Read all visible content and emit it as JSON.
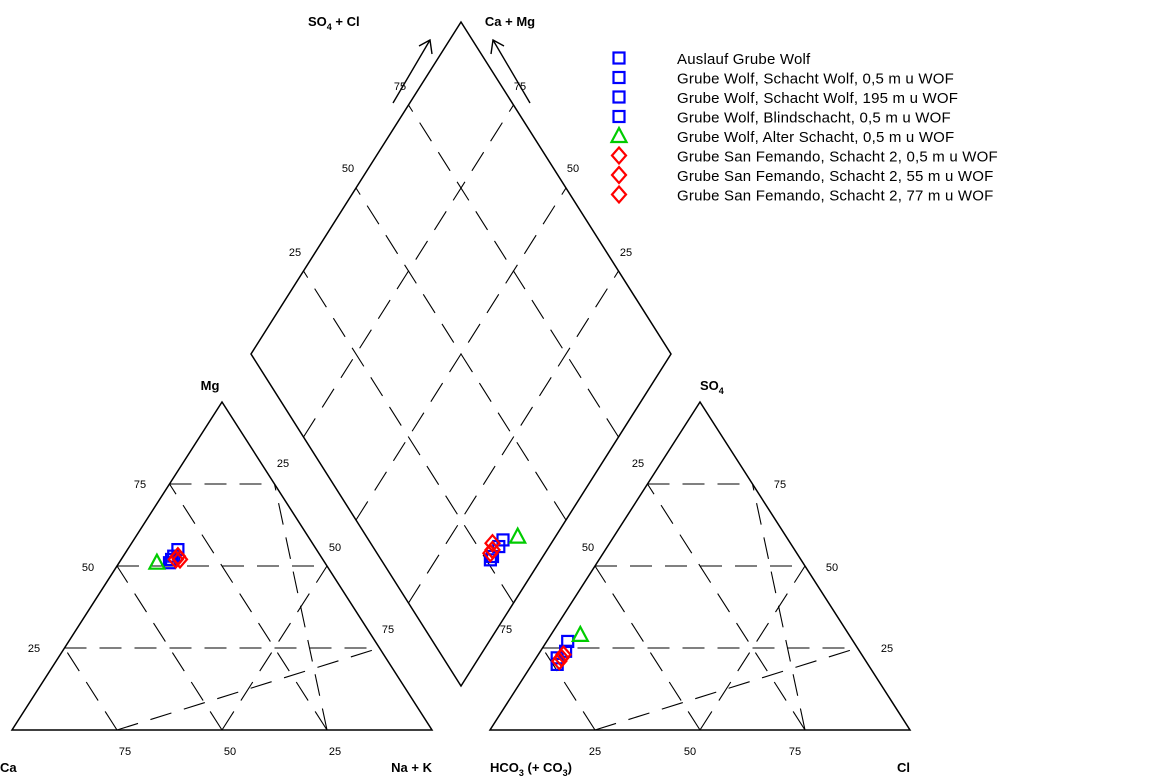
{
  "chart_data": {
    "type": "scatter",
    "subtype": "piper-diagram",
    "corner_labels": {
      "cation": {
        "left": "Ca",
        "top": "Mg",
        "right": "Na + K"
      },
      "anion": {
        "left_main": "HCO",
        "left_sub": "3",
        "left_mid": " (+ CO",
        "left_sub2": "3",
        "left_end": ")",
        "top_main": "SO",
        "top_sub": "4",
        "right": "Cl"
      },
      "diamond": {
        "left_main": "SO",
        "left_sub": "4",
        "left_end": " + Cl",
        "right": "Ca + Mg"
      }
    },
    "ticks": [
      "25",
      "50",
      "75"
    ],
    "series": [
      {
        "name": "Auslauf Grube Wolf",
        "marker": "square",
        "color": "#0000ff",
        "cation": {
          "ca": 33,
          "mg": 55,
          "nak": 12
        },
        "anion": {
          "hco3": 74,
          "so4": 20,
          "cl": 6
        }
      },
      {
        "name": "Grube Wolf, Schacht Wolf, 0,5 m u WOF",
        "marker": "square",
        "color": "#0000ff",
        "cation": {
          "ca": 35,
          "mg": 53,
          "nak": 12
        },
        "anion": {
          "hco3": 73,
          "so4": 22,
          "cl": 5
        }
      },
      {
        "name": "Grube Wolf, Schacht Wolf, 195 m u WOF",
        "marker": "square",
        "color": "#0000ff",
        "cation": {
          "ca": 36,
          "mg": 52,
          "nak": 12
        },
        "anion": {
          "hco3": 68,
          "so4": 27,
          "cl": 5
        }
      },
      {
        "name": "Grube Wolf, Blindschacht, 0,5 m u WOF",
        "marker": "square",
        "color": "#0000ff",
        "cation": {
          "ca": 37,
          "mg": 51,
          "nak": 12
        },
        "anion": {
          "hco3": 70,
          "so4": 24,
          "cl": 6
        }
      },
      {
        "name": "Grube Wolf, Alter Schacht, 0,5 m u WOF",
        "marker": "triangle",
        "color": "#00cc00",
        "cation": {
          "ca": 40,
          "mg": 51,
          "nak": 9
        },
        "anion": {
          "hco3": 64,
          "so4": 29,
          "cl": 7
        }
      },
      {
        "name": "Grube San Femando, Schacht 2, 0,5 m u WOF",
        "marker": "diamond",
        "color": "#ff0000",
        "cation": {
          "ca": 34,
          "mg": 52,
          "nak": 14
        },
        "anion": {
          "hco3": 71,
          "so4": 23,
          "cl": 6
        }
      },
      {
        "name": "Grube San Femando, Schacht 2, 55 m u WOF",
        "marker": "diamond",
        "color": "#ff0000",
        "cation": {
          "ca": 34,
          "mg": 53,
          "nak": 13
        },
        "anion": {
          "hco3": 72,
          "so4": 22,
          "cl": 6
        }
      },
      {
        "name": "Grube San Femando, Schacht 2, 77 m u WOF",
        "marker": "diamond",
        "color": "#ff0000",
        "cation": {
          "ca": 35,
          "mg": 52,
          "nak": 13
        },
        "anion": {
          "hco3": 73,
          "so4": 21,
          "cl": 6
        }
      }
    ],
    "grid": true,
    "legend_position": "top-right"
  }
}
